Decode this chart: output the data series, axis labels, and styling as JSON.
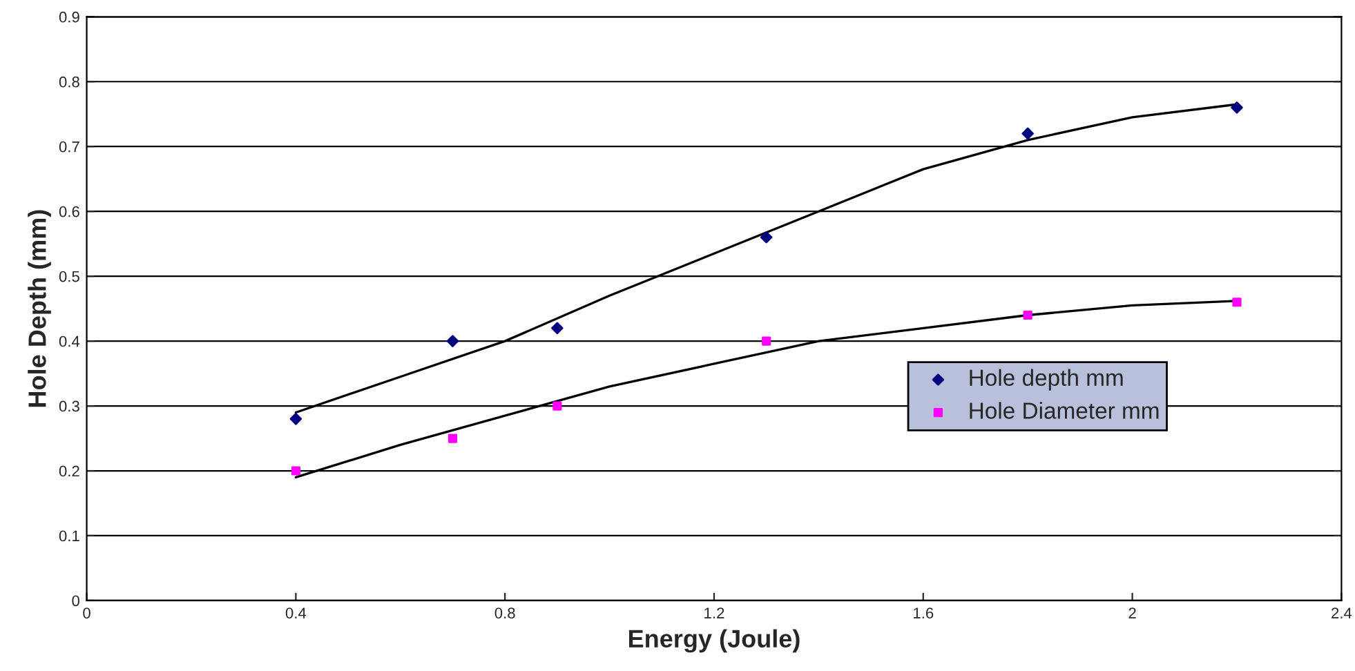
{
  "chart_data": {
    "type": "scatter",
    "xlabel": "Energy (Joule)",
    "ylabel": "Hole Depth (mm)",
    "xlim": [
      0,
      2.4
    ],
    "ylim": [
      0,
      0.9
    ],
    "xticks": [
      0,
      0.4,
      0.8,
      1.2,
      1.6,
      2,
      2.4
    ],
    "yticks": [
      0,
      0.1,
      0.2,
      0.3,
      0.4,
      0.5,
      0.6,
      0.7,
      0.8,
      0.9
    ],
    "grid": "y",
    "legend": "right",
    "series": [
      {
        "name": "Hole depth mm",
        "marker": "diamond",
        "color": "#000080",
        "x": [
          0.4,
          0.7,
          0.9,
          1.3,
          1.8,
          2.2
        ],
        "values": [
          0.28,
          0.4,
          0.42,
          0.56,
          0.72,
          0.76
        ]
      },
      {
        "name": "Hole Diameter mm",
        "marker": "square",
        "color": "#ff00ff",
        "x": [
          0.4,
          0.7,
          0.9,
          1.3,
          1.8,
          2.2
        ],
        "values": [
          0.2,
          0.25,
          0.3,
          0.4,
          0.44,
          0.46
        ]
      },
      {
        "type": "line",
        "marker": "none",
        "line_style": "solid",
        "color": "#000000",
        "x": [
          0.4,
          0.6,
          0.8,
          1.0,
          1.2,
          1.4,
          1.6,
          1.8,
          2.0,
          2.2
        ],
        "values": [
          0.29,
          0.345,
          0.4,
          0.47,
          0.535,
          0.6,
          0.665,
          0.71,
          0.745,
          0.765
        ]
      },
      {
        "type": "line",
        "marker": "none",
        "line_style": "solid",
        "color": "#000000",
        "x": [
          0.4,
          0.6,
          0.8,
          1.0,
          1.2,
          1.4,
          1.6,
          1.8,
          2.0,
          2.2
        ],
        "values": [
          0.19,
          0.24,
          0.285,
          0.33,
          0.365,
          0.4,
          0.42,
          0.44,
          0.455,
          0.462
        ]
      }
    ]
  }
}
